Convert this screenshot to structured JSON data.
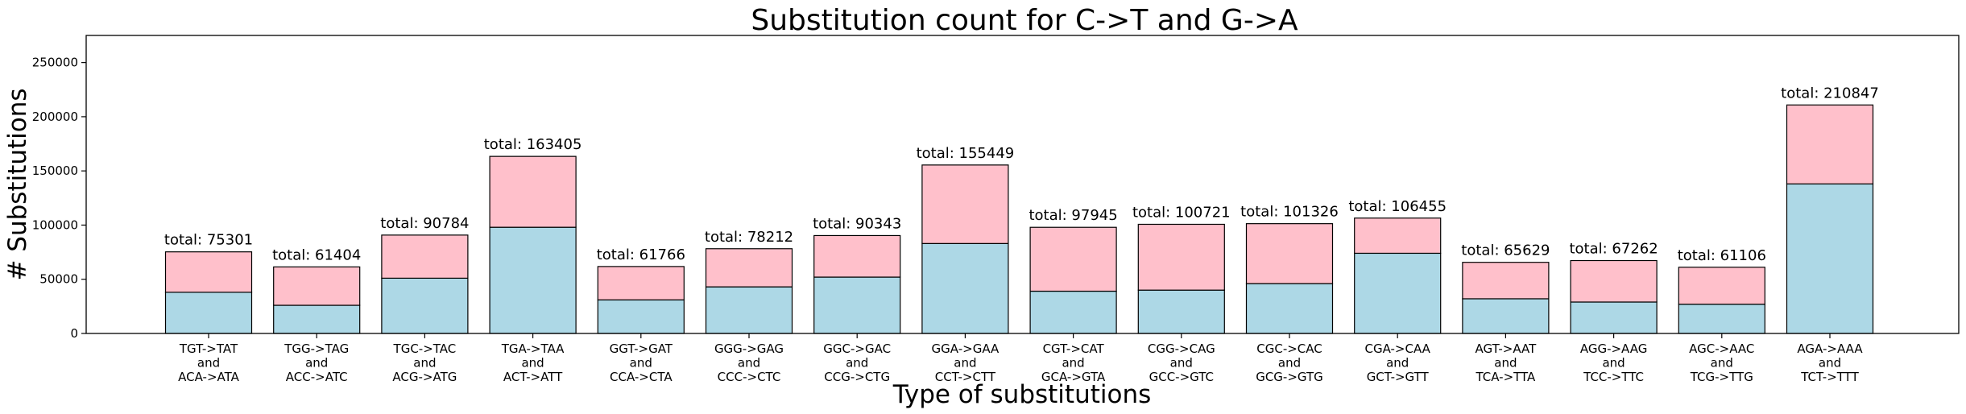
{
  "chart_data": {
    "type": "bar",
    "stacked": true,
    "title": "Substitution count for C->T and G->A",
    "xlabel": "Type of substitutions",
    "ylabel": "# Substitutions",
    "ylim": [
      0,
      275000
    ],
    "yticks": [
      0,
      50000,
      100000,
      150000,
      200000,
      250000
    ],
    "grid": false,
    "legend": "none",
    "categories": [
      [
        "TGT->TAT",
        "and",
        "ACA->ATA"
      ],
      [
        "TGG->TAG",
        "and",
        "ACC->ATC"
      ],
      [
        "TGC->TAC",
        "and",
        "ACG->ATG"
      ],
      [
        "TGA->TAA",
        "and",
        "ACT->ATT"
      ],
      [
        "GGT->GAT",
        "and",
        "CCA->CTA"
      ],
      [
        "GGG->GAG",
        "and",
        "CCC->CTC"
      ],
      [
        "GGC->GAC",
        "and",
        "CCG->CTG"
      ],
      [
        "GGA->GAA",
        "and",
        "CCT->CTT"
      ],
      [
        "CGT->CAT",
        "and",
        "GCA->GTA"
      ],
      [
        "CGG->CAG",
        "and",
        "GCC->GTC"
      ],
      [
        "CGC->CAC",
        "and",
        "GCG->GTG"
      ],
      [
        "CGA->CAA",
        "and",
        "GCT->GTT"
      ],
      [
        "AGT->AAT",
        "and",
        "TCA->TTA"
      ],
      [
        "AGG->AAG",
        "and",
        "TCC->TTC"
      ],
      [
        "AGC->AAC",
        "and",
        "TCG->TTG"
      ],
      [
        "AGA->AAA",
        "and",
        "TCT->TTT"
      ]
    ],
    "series": [
      {
        "color": "#add8e6",
        "values": [
          38000,
          26000,
          51000,
          98000,
          31000,
          43000,
          52000,
          83000,
          39000,
          40000,
          46000,
          74000,
          32000,
          29000,
          27000,
          138000
        ]
      },
      {
        "color": "#ffc0cb",
        "values": [
          37301,
          35404,
          39784,
          65405,
          30766,
          35212,
          38343,
          72449,
          58945,
          60721,
          55326,
          32455,
          33629,
          38262,
          34106,
          72847
        ]
      }
    ],
    "totals": [
      75301,
      61404,
      90784,
      163405,
      61766,
      78212,
      90343,
      155449,
      97945,
      100721,
      101326,
      106455,
      65629,
      67262,
      61106,
      210847
    ],
    "total_prefix": "total: "
  }
}
